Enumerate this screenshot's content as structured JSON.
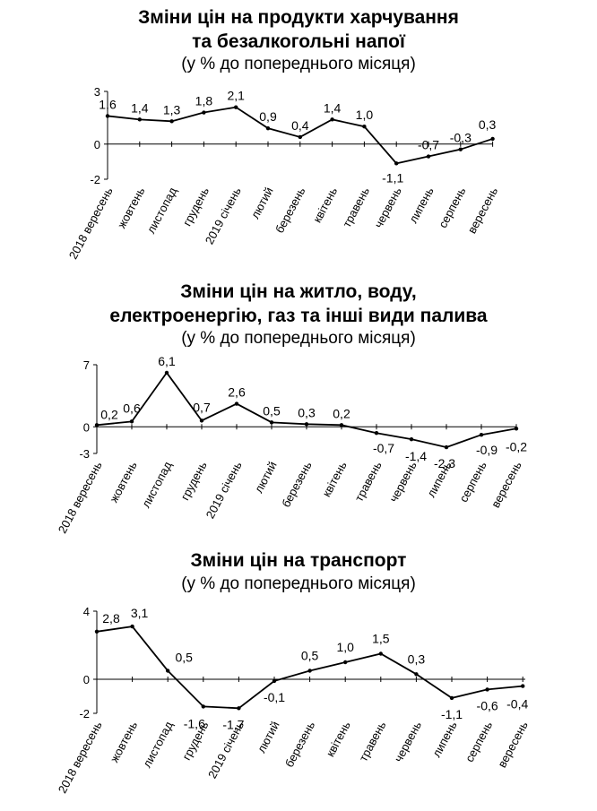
{
  "chart_data": [
    {
      "type": "line",
      "title_lines": [
        "Зміни цін на продукти харчування",
        "та безалкогольні  напої"
      ],
      "subtitle": "(у % до попереднього місяця)",
      "categories": [
        "2018 вересень",
        "жовтень",
        "листопад",
        "грудень",
        "2019 січень",
        "лютий",
        "березень",
        "квітень",
        "травень",
        "червень",
        "липень",
        "серпень",
        "вересень"
      ],
      "values": [
        1.6,
        1.4,
        1.3,
        1.8,
        2.1,
        0.9,
        0.4,
        1.4,
        1.0,
        -1.1,
        -0.7,
        -0.3,
        0.3
      ],
      "labels": [
        "1,6",
        "1,4",
        "1,3",
        "1,8",
        "2,1",
        "0,9",
        "0,4",
        "1,4",
        "1,0",
        "-1,1",
        "-0,7",
        "-0,3",
        "0,3"
      ],
      "ylim": [
        -2,
        3
      ],
      "yticks": [
        -2,
        0,
        3
      ],
      "ytick_labels": [
        "-2",
        "0",
        "3"
      ],
      "grid": false,
      "xlabel": "",
      "ylabel": ""
    },
    {
      "type": "line",
      "title_lines": [
        "Зміни цін на житло, воду,",
        "електроенергію, газ та інші види палива"
      ],
      "subtitle": "(у % до попереднього місяця)",
      "categories": [
        "2018 вересень",
        "жовтень",
        "листопад",
        "грудень",
        "2019 січень",
        "лютий",
        "березень",
        "квітень",
        "травень",
        "червень",
        "липень",
        "серпень",
        "вересень"
      ],
      "values": [
        0.2,
        0.6,
        6.1,
        0.7,
        2.6,
        0.5,
        0.3,
        0.2,
        -0.7,
        -1.4,
        -2.3,
        -0.9,
        -0.2
      ],
      "labels": [
        "0,2",
        "0,6",
        "6,1",
        "0,7",
        "2,6",
        "0,5",
        "0,3",
        "0,2",
        "-0,7",
        "-1,4",
        "-2,3",
        "-0,9",
        "-0,2"
      ],
      "ylim": [
        -3,
        7
      ],
      "yticks": [
        -3,
        0,
        7
      ],
      "ytick_labels": [
        "-3",
        "0",
        "7"
      ],
      "grid": false,
      "xlabel": "",
      "ylabel": ""
    },
    {
      "type": "line",
      "title_lines": [
        "Зміни цін на транспорт"
      ],
      "subtitle": "(у % до попереднього місяця)",
      "categories": [
        "2018 вересень",
        "жовтень",
        "листопад",
        "грудень",
        "2019 січень",
        "лютий",
        "березень",
        "квітень",
        "травень",
        "червень",
        "липень",
        "серпень",
        "вересень"
      ],
      "values": [
        2.8,
        3.1,
        0.5,
        -1.6,
        -1.7,
        -0.1,
        0.5,
        1.0,
        1.5,
        0.3,
        -1.1,
        -0.6,
        -0.4
      ],
      "labels": [
        "2,8",
        "3,1",
        "0,5",
        "-1,6",
        "-1,7",
        "-0,1",
        "0,5",
        "1,0",
        "1,5",
        "0,3",
        "-1,1",
        "-0,6",
        "-0,4"
      ],
      "ylim": [
        -2,
        4
      ],
      "yticks": [
        -2,
        0,
        4
      ],
      "ytick_labels": [
        "-2",
        "0",
        "4"
      ],
      "grid": false,
      "xlabel": "",
      "ylabel": ""
    }
  ]
}
